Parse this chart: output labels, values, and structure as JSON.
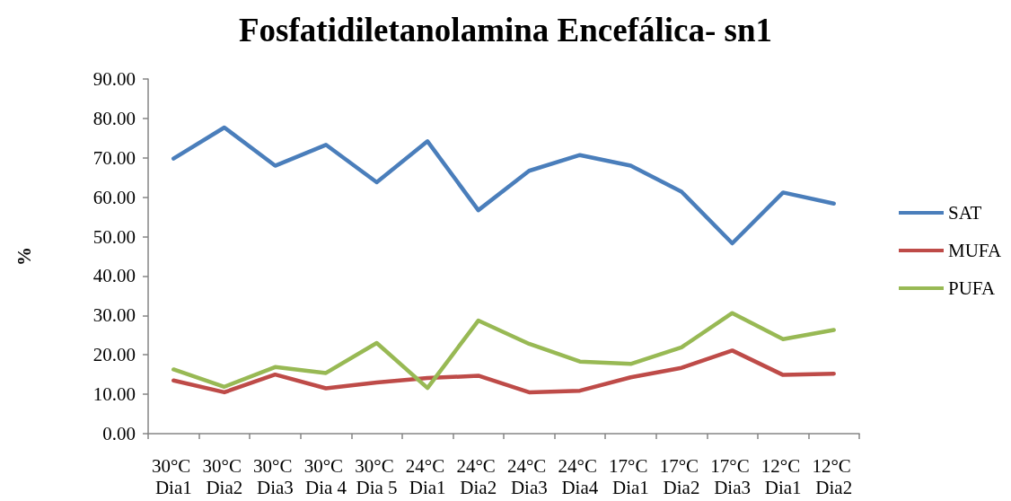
{
  "chart_data": {
    "type": "line",
    "title": "Fosfatidiletanolamina Encefálica- sn1",
    "ylabel": "%",
    "categories": [
      "30°C Dia1",
      "30°C Dia2",
      "30°C Dia3",
      "30°C Dia 4",
      "30°C Dia 5",
      "24°C Dia1",
      "24°C Dia2",
      "24°C Dia3",
      "24°C Dia4",
      "17°C Dia1",
      "17°C Dia2",
      "17°C Dia3",
      "12°C Dia1",
      "12°C Dia2"
    ],
    "series": [
      {
        "name": "SAT",
        "color": "#4a7ebb",
        "values": [
          69.8,
          77.7,
          68.0,
          73.3,
          63.8,
          74.2,
          56.7,
          66.7,
          70.7,
          68.0,
          61.4,
          48.3,
          61.2,
          58.4
        ]
      },
      {
        "name": "MUFA",
        "color": "#be4b48",
        "values": [
          13.5,
          10.5,
          15.0,
          11.5,
          13.0,
          14.1,
          14.7,
          10.5,
          10.9,
          14.3,
          16.7,
          21.1,
          14.9,
          15.2
        ]
      },
      {
        "name": "PUFA",
        "color": "#98b954",
        "values": [
          16.3,
          11.9,
          16.9,
          15.4,
          23.0,
          11.6,
          28.7,
          22.8,
          18.3,
          17.7,
          21.9,
          30.6,
          24.0,
          26.3
        ]
      }
    ],
    "ylim": [
      0,
      90
    ],
    "yticks": [
      {
        "value": 0,
        "label": "0.00"
      },
      {
        "value": 10,
        "label": "10.00"
      },
      {
        "value": 20,
        "label": "20.00"
      },
      {
        "value": 30,
        "label": "30.00"
      },
      {
        "value": 40,
        "label": "40.00"
      },
      {
        "value": 50,
        "label": "50.00"
      },
      {
        "value": 60,
        "label": "60.00"
      },
      {
        "value": 70,
        "label": "70.00"
      },
      {
        "value": 80,
        "label": "80.00"
      },
      {
        "value": 90,
        "label": "90.00"
      }
    ],
    "grid": false,
    "legend": "right"
  }
}
